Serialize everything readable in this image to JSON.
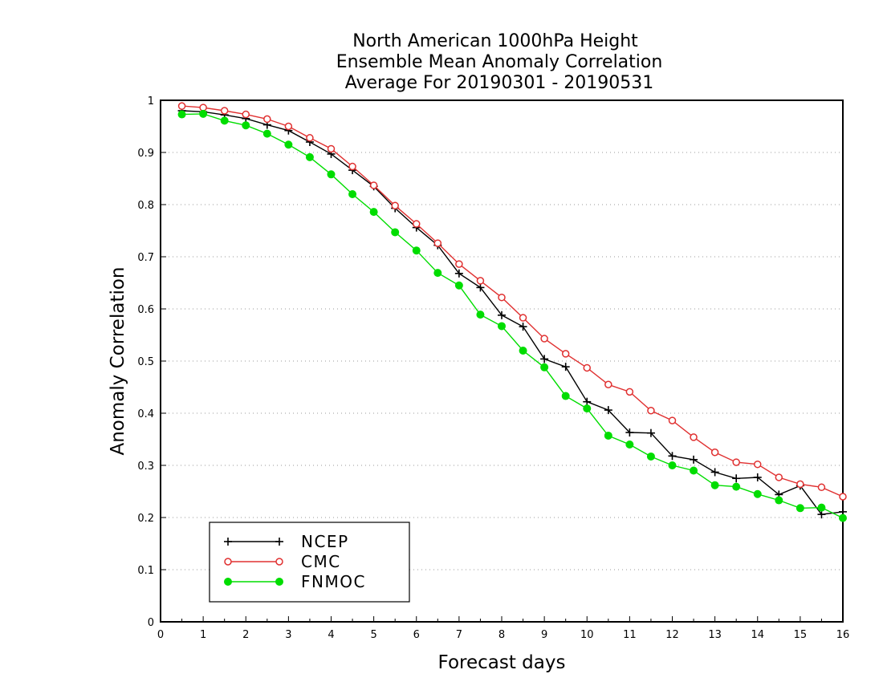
{
  "chart_data": {
    "type": "line",
    "title_lines": [
      "North American 1000hPa Height",
      "Ensemble Mean Anomaly Correlation",
      "Average For 20190301 - 20190531"
    ],
    "xlabel": "Forecast days",
    "ylabel": "Anomaly Correlation",
    "xlim": [
      0,
      16
    ],
    "ylim": [
      0,
      1
    ],
    "x_ticks": [
      0,
      1,
      2,
      3,
      4,
      5,
      6,
      7,
      8,
      9,
      10,
      11,
      12,
      13,
      14,
      15,
      16
    ],
    "x_tick_labels": [
      "0",
      "1",
      "2",
      "3",
      "4",
      "5",
      "6",
      "7",
      "8",
      "9",
      "10",
      "11",
      "12",
      "13",
      "14",
      "15",
      "16"
    ],
    "y_ticks": [
      0,
      0.1,
      0.2,
      0.3,
      0.4,
      0.5,
      0.6,
      0.7,
      0.8,
      0.9,
      1
    ],
    "y_tick_labels": [
      "0",
      "0.1",
      "0.2",
      "0.3",
      "0.4",
      "0.5",
      "0.6",
      "0.7",
      "0.8",
      "0.9",
      "1"
    ],
    "grid": "horizontal-dotted",
    "legend_position": "bottom-left",
    "x": [
      0.5,
      1,
      1.5,
      2,
      2.5,
      3,
      3.5,
      4,
      4.5,
      5,
      5.5,
      6,
      6.5,
      7,
      7.5,
      8,
      8.5,
      9,
      9.5,
      10,
      10.5,
      11,
      11.5,
      12,
      12.5,
      13,
      13.5,
      14,
      14.5,
      15,
      15.5,
      16
    ],
    "series": [
      {
        "name": "NCEP",
        "color": "#000000",
        "marker": "plus",
        "values": [
          0.98,
          0.978,
          0.972,
          0.965,
          0.953,
          0.942,
          0.92,
          0.897,
          0.866,
          0.835,
          0.793,
          0.756,
          0.722,
          0.668,
          0.641,
          0.588,
          0.566,
          0.504,
          0.489,
          0.422,
          0.406,
          0.363,
          0.362,
          0.318,
          0.311,
          0.287,
          0.275,
          0.277,
          0.244,
          0.261,
          0.206,
          0.211
        ]
      },
      {
        "name": "CMC",
        "color": "#e03030",
        "marker": "open-circle",
        "values": [
          0.989,
          0.986,
          0.98,
          0.973,
          0.964,
          0.95,
          0.928,
          0.907,
          0.873,
          0.837,
          0.798,
          0.763,
          0.726,
          0.686,
          0.654,
          0.622,
          0.583,
          0.543,
          0.514,
          0.487,
          0.455,
          0.441,
          0.405,
          0.386,
          0.354,
          0.325,
          0.306,
          0.302,
          0.277,
          0.264,
          0.258,
          0.24
        ]
      },
      {
        "name": "FNMOC",
        "color": "#00dd00",
        "marker": "filled-circle",
        "values": [
          0.973,
          0.974,
          0.961,
          0.952,
          0.936,
          0.915,
          0.891,
          0.858,
          0.82,
          0.786,
          0.747,
          0.712,
          0.669,
          0.645,
          0.589,
          0.567,
          0.52,
          0.488,
          0.433,
          0.409,
          0.357,
          0.34,
          0.317,
          0.3,
          0.29,
          0.262,
          0.259,
          0.245,
          0.233,
          0.218,
          0.219,
          0.199
        ]
      }
    ]
  }
}
